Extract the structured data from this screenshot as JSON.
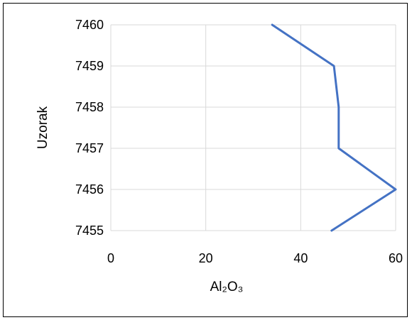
{
  "chart_data": {
    "type": "line",
    "title": "",
    "xlabel": "Al₂O₃",
    "ylabel": "Uzorak",
    "xlim": [
      0,
      60
    ],
    "ylim": [
      7455,
      7460
    ],
    "x_ticks": [
      "0",
      "20",
      "40",
      "60"
    ],
    "y_ticks": [
      "7455",
      "7456",
      "7457",
      "7458",
      "7459",
      "7460"
    ],
    "grid": true,
    "legend": "none",
    "series": [
      {
        "color": "#4472C4",
        "points": [
          {
            "x": 46.5,
            "y": 7455
          },
          {
            "x": 60.0,
            "y": 7456
          },
          {
            "x": 48.0,
            "y": 7457
          },
          {
            "x": 48.0,
            "y": 7458
          },
          {
            "x": 47.0,
            "y": 7459
          },
          {
            "x": 34.0,
            "y": 7460
          }
        ]
      }
    ]
  }
}
